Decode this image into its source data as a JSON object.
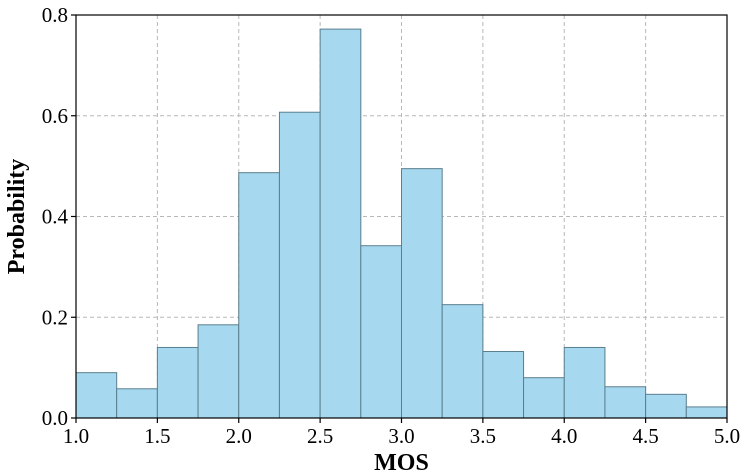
{
  "chart_data": {
    "type": "bar",
    "xlabel": "MOS",
    "ylabel": "Probability",
    "xlim": [
      1.0,
      5.0
    ],
    "ylim": [
      0.0,
      0.8
    ],
    "x_ticks": [
      "1.0",
      "1.5",
      "2.0",
      "2.5",
      "3.0",
      "3.5",
      "4.0",
      "4.5",
      "5.0"
    ],
    "y_ticks": [
      "0.0",
      "0.2",
      "0.4",
      "0.6",
      "0.8"
    ],
    "bin_edges": [
      1.0,
      1.25,
      1.5,
      1.75,
      2.0,
      2.25,
      2.5,
      2.75,
      3.0,
      3.25,
      3.5,
      3.75,
      4.0,
      4.25,
      4.5,
      4.75,
      5.0
    ],
    "values": [
      0.09,
      0.058,
      0.14,
      0.185,
      0.487,
      0.607,
      0.772,
      0.342,
      0.495,
      0.225,
      0.132,
      0.08,
      0.14,
      0.062,
      0.047,
      0.022
    ],
    "grid": true,
    "colors": {
      "bar_fill": "#a6d8ef",
      "bar_edge": "#5a7f8e",
      "grid": "#b8b8b8"
    }
  }
}
